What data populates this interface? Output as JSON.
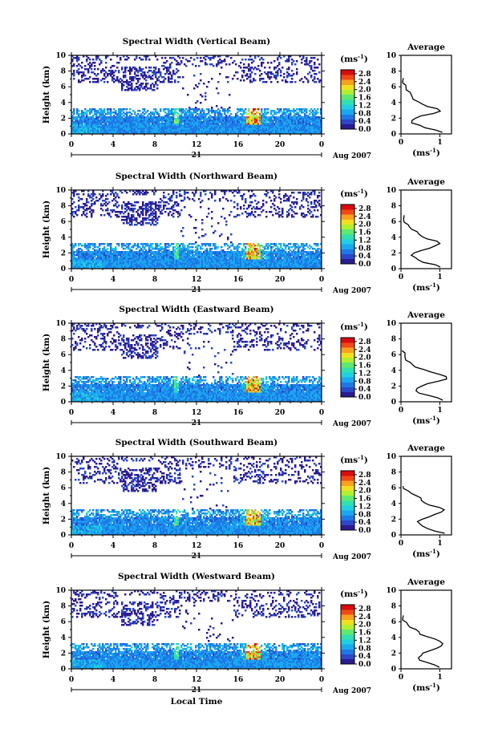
{
  "figure": {
    "xlabel": "Local Time",
    "date_day": "21",
    "date_month": "Aug 2007"
  },
  "chart_data": [
    {
      "type": "heatmap",
      "title": "Spectral Width (Vertical Beam)",
      "xlabel": "",
      "ylabel": "Height (km)",
      "x_ticks": [
        "0",
        "4",
        "8",
        "12",
        "16",
        "20",
        "0"
      ],
      "y_ticks": [
        "0",
        "2",
        "4",
        "6",
        "8",
        "10"
      ],
      "xlim": [
        0,
        24
      ],
      "ylim": [
        0,
        10
      ],
      "colorbar": {
        "unit": "(ms",
        "unit_sup": "-1",
        "unit_close": ")",
        "ticks": [
          "0.0",
          "0.4",
          "0.8",
          "1.2",
          "1.6",
          "2.0",
          "2.4",
          "2.8"
        ],
        "range": [
          0,
          3.0
        ]
      },
      "avg_profile": {
        "title": "Average",
        "xlabel": "(ms",
        "xlabel_sup": "-1",
        "xlabel_close": ")",
        "x_ticks": [
          "0",
          "1"
        ],
        "y_ticks": [
          "0",
          "2",
          "4",
          "6",
          "8",
          "10"
        ],
        "xlim": [
          0,
          1.3
        ],
        "ylim": [
          0,
          10
        ],
        "heights": [
          0.2,
          0.5,
          0.8,
          1.1,
          1.4,
          1.7,
          2.0,
          2.3,
          2.6,
          2.9,
          3.2,
          3.5,
          3.8,
          4.1,
          4.4,
          4.7,
          5.0,
          5.3,
          5.6,
          5.9,
          6.2,
          6.5,
          6.8,
          7.1
        ],
        "values": [
          1.1,
          0.9,
          0.6,
          0.45,
          0.3,
          0.28,
          0.35,
          0.55,
          0.85,
          1.0,
          0.9,
          0.7,
          0.55,
          0.42,
          0.35,
          0.3,
          0.25,
          0.2,
          0.16,
          0.13,
          0.1,
          0.08,
          0.06,
          0.05
        ]
      }
    },
    {
      "type": "heatmap",
      "title": "Spectral Width (Northward Beam)",
      "xlabel": "",
      "ylabel": "Height (km)",
      "x_ticks": [
        "0",
        "4",
        "8",
        "12",
        "16",
        "20",
        "0"
      ],
      "y_ticks": [
        "0",
        "2",
        "4",
        "6",
        "8",
        "10"
      ],
      "xlim": [
        0,
        24
      ],
      "ylim": [
        0,
        10
      ],
      "colorbar": {
        "unit": "(ms",
        "unit_sup": "-1",
        "unit_close": ")",
        "ticks": [
          "0.0",
          "0.4",
          "0.8",
          "1.2",
          "1.6",
          "2.0",
          "2.4",
          "2.8"
        ],
        "range": [
          0,
          3.0
        ]
      },
      "avg_profile": {
        "title": "Average",
        "xlabel": "(ms",
        "xlabel_sup": "-1",
        "xlabel_close": ")",
        "x_ticks": [
          "0",
          "1"
        ],
        "y_ticks": [
          "0",
          "2",
          "4",
          "6",
          "8",
          "10"
        ],
        "xlim": [
          0,
          1.3
        ],
        "ylim": [
          0,
          10
        ],
        "heights": [
          0.2,
          0.5,
          0.8,
          1.1,
          1.4,
          1.7,
          2.0,
          2.3,
          2.6,
          2.9,
          3.2,
          3.5,
          3.8,
          4.1,
          4.4,
          4.7,
          5.0,
          5.3,
          5.6,
          5.9,
          6.2,
          6.5,
          6.8
        ],
        "values": [
          1.0,
          0.85,
          0.6,
          0.45,
          0.35,
          0.3,
          0.35,
          0.5,
          0.7,
          0.9,
          1.0,
          0.9,
          0.7,
          0.55,
          0.45,
          0.38,
          0.3,
          0.22,
          0.16,
          0.12,
          0.08,
          0.06,
          0.05
        ]
      }
    },
    {
      "type": "heatmap",
      "title": "Spectral Width (Eastward Beam)",
      "xlabel": "",
      "ylabel": "Height (km)",
      "x_ticks": [
        "0",
        "4",
        "8",
        "12",
        "16",
        "20",
        "0"
      ],
      "y_ticks": [
        "0",
        "2",
        "4",
        "6",
        "8",
        "10"
      ],
      "xlim": [
        0,
        24
      ],
      "ylim": [
        0,
        10
      ],
      "colorbar": {
        "unit": "(ms",
        "unit_sup": "-1",
        "unit_close": ")",
        "ticks": [
          "0.0",
          "0.4",
          "0.8",
          "1.2",
          "1.6",
          "2.0",
          "2.4",
          "2.8"
        ],
        "range": [
          0,
          3.0
        ]
      },
      "avg_profile": {
        "title": "Average",
        "xlabel": "(ms",
        "xlabel_sup": "-1",
        "xlabel_close": ")",
        "x_ticks": [
          "0",
          "1"
        ],
        "y_ticks": [
          "0",
          "2",
          "4",
          "6",
          "8",
          "10"
        ],
        "xlim": [
          0,
          1.3
        ],
        "ylim": [
          0,
          10
        ],
        "heights": [
          0.2,
          0.5,
          0.8,
          1.1,
          1.4,
          1.7,
          2.0,
          2.3,
          2.6,
          2.9,
          3.2,
          3.5,
          3.8,
          4.1,
          4.4,
          4.7,
          5.0,
          5.3,
          5.6,
          5.9,
          6.2,
          6.5
        ],
        "values": [
          1.1,
          0.95,
          0.7,
          0.5,
          0.4,
          0.4,
          0.5,
          0.7,
          0.95,
          1.15,
          1.2,
          1.0,
          0.75,
          0.55,
          0.4,
          0.3,
          0.22,
          0.16,
          0.12,
          0.09,
          0.07,
          0.05
        ]
      }
    },
    {
      "type": "heatmap",
      "title": "Spectral Width (Southward Beam)",
      "xlabel": "",
      "ylabel": "Height (km)",
      "x_ticks": [
        "0",
        "4",
        "8",
        "12",
        "16",
        "20",
        "0"
      ],
      "y_ticks": [
        "0",
        "2",
        "4",
        "6",
        "8",
        "10"
      ],
      "xlim": [
        0,
        24
      ],
      "ylim": [
        0,
        10
      ],
      "colorbar": {
        "unit": "(ms",
        "unit_sup": "-1",
        "unit_close": ")",
        "ticks": [
          "0.0",
          "0.4",
          "0.8",
          "1.2",
          "1.6",
          "2.0",
          "2.4",
          "2.8"
        ],
        "range": [
          0,
          3.0
        ]
      },
      "avg_profile": {
        "title": "Average",
        "xlabel": "(ms",
        "xlabel_sup": "-1",
        "xlabel_close": ")",
        "x_ticks": [
          "0",
          "1"
        ],
        "y_ticks": [
          "0",
          "2",
          "4",
          "6",
          "8",
          "10"
        ],
        "xlim": [
          0,
          1.3
        ],
        "ylim": [
          0,
          10
        ],
        "heights": [
          0.2,
          0.5,
          0.8,
          1.1,
          1.4,
          1.7,
          2.0,
          2.3,
          2.6,
          2.9,
          3.2,
          3.5,
          3.8,
          4.1,
          4.4,
          4.7,
          5.0,
          5.3,
          5.6,
          5.9,
          6.2
        ],
        "values": [
          1.1,
          0.9,
          0.7,
          0.55,
          0.45,
          0.45,
          0.55,
          0.7,
          0.9,
          1.05,
          1.1,
          0.95,
          0.75,
          0.6,
          0.5,
          0.55,
          0.4,
          0.25,
          0.15,
          0.09,
          0.05
        ]
      }
    },
    {
      "type": "heatmap",
      "title": "Spectral Width (Westward Beam)",
      "xlabel": "",
      "ylabel": "Height (km)",
      "x_ticks": [
        "0",
        "4",
        "8",
        "12",
        "16",
        "20",
        "0"
      ],
      "y_ticks": [
        "0",
        "2",
        "4",
        "6",
        "8",
        "10"
      ],
      "xlim": [
        0,
        24
      ],
      "ylim": [
        0,
        10
      ],
      "colorbar": {
        "unit": "(ms",
        "unit_sup": "-1",
        "unit_close": ")",
        "ticks": [
          "0.0",
          "0.4",
          "0.8",
          "1.2",
          "1.6",
          "2.0",
          "2.4",
          "2.8"
        ],
        "range": [
          0,
          3.0
        ]
      },
      "avg_profile": {
        "title": "Average",
        "xlabel": "(ms",
        "xlabel_sup": "-1",
        "xlabel_close": ")",
        "x_ticks": [
          "0",
          "1"
        ],
        "y_ticks": [
          "0",
          "2",
          "4",
          "6",
          "8",
          "10"
        ],
        "xlim": [
          0,
          1.3
        ],
        "ylim": [
          0,
          10
        ],
        "heights": [
          0.2,
          0.5,
          0.8,
          1.1,
          1.4,
          1.7,
          2.0,
          2.3,
          2.6,
          2.9,
          3.2,
          3.5,
          3.8,
          4.1,
          4.4,
          4.7,
          5.0,
          5.3,
          5.6,
          5.9,
          6.2,
          6.5,
          6.8
        ],
        "values": [
          1.0,
          0.85,
          0.65,
          0.5,
          0.45,
          0.5,
          0.6,
          0.75,
          0.9,
          1.0,
          1.1,
          1.0,
          0.85,
          0.7,
          0.5,
          0.45,
          0.35,
          0.25,
          0.18,
          0.12,
          0.08,
          0.06,
          0.05
        ]
      }
    }
  ]
}
